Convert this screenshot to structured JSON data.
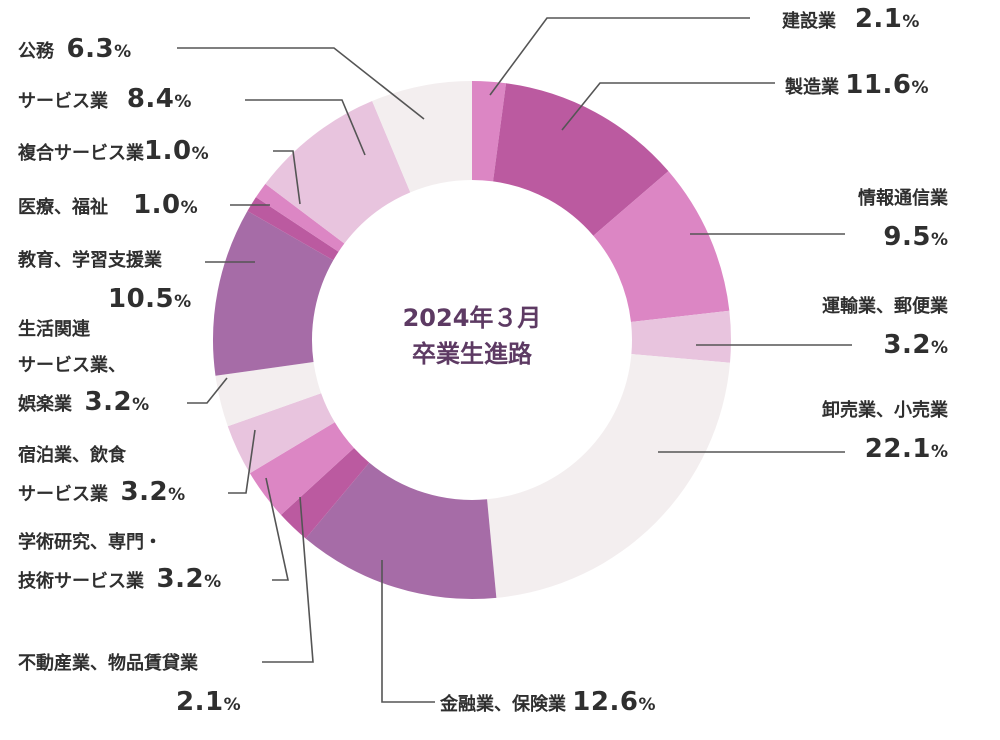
{
  "chart_data": {
    "type": "donut",
    "title_lines": [
      "2024年３月",
      "卒業生進路"
    ],
    "unit": "%",
    "slices": [
      {
        "label": "建設業",
        "value": 2.1,
        "value_text": "2.1",
        "color": "#dc86c4"
      },
      {
        "label": "製造業",
        "value": 11.6,
        "value_text": "11.6",
        "color": "#bb5aa0"
      },
      {
        "label": "情報通信業",
        "value": 9.5,
        "value_text": "9.5",
        "color": "#dc86c4"
      },
      {
        "label": "運輸業、郵便業",
        "value": 3.2,
        "value_text": "3.2",
        "color": "#e8c4de"
      },
      {
        "label": "卸売業、小売業",
        "value": 22.1,
        "value_text": "22.1",
        "color": "#f3eeef"
      },
      {
        "label": "金融業、保険業",
        "value": 12.6,
        "value_text": "12.6",
        "color": "#a66ca7"
      },
      {
        "label": "不動産業、物品賃貸業",
        "value": 2.1,
        "value_text": "2.1",
        "color": "#bb5aa0"
      },
      {
        "label": "学術研究、専門・技術サービス業",
        "value": 3.2,
        "value_text": "3.2",
        "color": "#dc86c4"
      },
      {
        "label": "宿泊業、飲食サービス業",
        "value": 3.2,
        "value_text": "3.2",
        "color": "#e8c4de"
      },
      {
        "label": "生活関連サービス業、娯楽業",
        "value": 3.2,
        "value_text": "3.2",
        "color": "#f3eeef"
      },
      {
        "label": "教育、学習支援業",
        "value": 10.5,
        "value_text": "10.5",
        "color": "#a66ca7"
      },
      {
        "label": "医療、福祉",
        "value": 1.0,
        "value_text": "1.0",
        "color": "#bb5aa0"
      },
      {
        "label": "複合サービス業",
        "value": 1.0,
        "value_text": "1.0",
        "color": "#dc86c4"
      },
      {
        "label": "サービス業",
        "value": 8.4,
        "value_text": "8.4",
        "color": "#e8c4de"
      },
      {
        "label": "公務",
        "value": 6.3,
        "value_text": "6.3",
        "color": "#f3eeef"
      }
    ]
  },
  "labels": {
    "kensetsu": {
      "cat": "建設業"
    },
    "seizo": {
      "cat": "製造業"
    },
    "joho": {
      "cat": "情報通信業"
    },
    "unyu": {
      "cat": "運輸業、郵便業"
    },
    "oroshi": {
      "cat": "卸売業、小売業"
    },
    "kinyu": {
      "cat": "金融業、保険業"
    },
    "fudosan": {
      "cat": "不動産業、物品賃貸業"
    },
    "gakujutsu": {
      "line1": "学術研究、専門・",
      "line2": "技術サービス業"
    },
    "shukuhaku": {
      "line1": "宿泊業、飲食",
      "line2": "サービス業"
    },
    "seikatsu": {
      "line1": "生活関連",
      "line2": "サービス業、",
      "line3": "娯楽業"
    },
    "kyoiku": {
      "cat": "教育、学習支援業"
    },
    "iryo": {
      "cat": "医療、福祉"
    },
    "fukugo": {
      "cat": "複合サービス業"
    },
    "service": {
      "cat": "サービス業"
    },
    "komu": {
      "cat": "公務"
    }
  },
  "values": {
    "kensetsu": "2.1",
    "seizo": "11.6",
    "joho": "9.5",
    "unyu": "3.2",
    "oroshi": "22.1",
    "kinyu": "12.6",
    "fudosan": "2.1",
    "gakujutsu": "3.2",
    "shukuhaku": "3.2",
    "seikatsu": "3.2",
    "kyoiku": "10.5",
    "iryo": "1.0",
    "fukugo": "1.0",
    "service": "8.4",
    "komu": "6.3"
  },
  "pct_symbol": "%"
}
